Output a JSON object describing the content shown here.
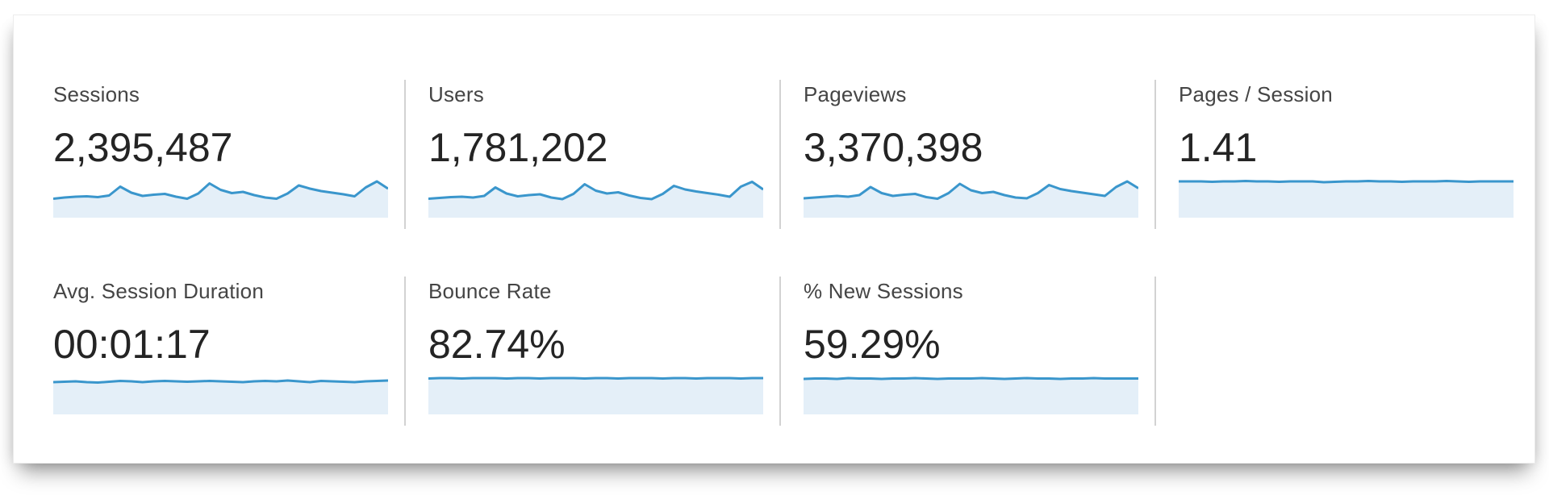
{
  "colors": {
    "spark_line": "#3a96cc",
    "spark_fill": "#e4eff8",
    "divider": "#d2d2d2"
  },
  "metrics": [
    {
      "label": "Sessions",
      "value": "2,395,487"
    },
    {
      "label": "Users",
      "value": "1,781,202"
    },
    {
      "label": "Pageviews",
      "value": "3,370,398"
    },
    {
      "label": "Pages / Session",
      "value": "1.41"
    },
    {
      "label": "Avg. Session Duration",
      "value": "00:01:17"
    },
    {
      "label": "Bounce Rate",
      "value": "82.74%"
    },
    {
      "label": "% New Sessions",
      "value": "59.29%"
    }
  ],
  "chart_data": [
    {
      "type": "area",
      "metric": "Sessions",
      "title": "Sessions sparkline",
      "xlabel": "",
      "ylabel": "",
      "ylim": [
        0,
        1
      ],
      "grid": false,
      "legend": false,
      "values": [
        0.5,
        0.53,
        0.55,
        0.56,
        0.54,
        0.58,
        0.8,
        0.65,
        0.57,
        0.6,
        0.62,
        0.55,
        0.5,
        0.63,
        0.88,
        0.72,
        0.64,
        0.67,
        0.59,
        0.53,
        0.5,
        0.63,
        0.83,
        0.75,
        0.69,
        0.65,
        0.61,
        0.56,
        0.78,
        0.93,
        0.75
      ]
    },
    {
      "type": "area",
      "metric": "Users",
      "title": "Users sparkline",
      "xlabel": "",
      "ylabel": "",
      "ylim": [
        0,
        1
      ],
      "grid": false,
      "legend": false,
      "values": [
        0.5,
        0.52,
        0.54,
        0.55,
        0.53,
        0.57,
        0.78,
        0.63,
        0.56,
        0.59,
        0.61,
        0.53,
        0.49,
        0.62,
        0.86,
        0.7,
        0.63,
        0.66,
        0.58,
        0.52,
        0.49,
        0.62,
        0.82,
        0.73,
        0.68,
        0.64,
        0.6,
        0.55,
        0.8,
        0.92,
        0.73
      ]
    },
    {
      "type": "area",
      "metric": "Pageviews",
      "title": "Pageviews sparkline",
      "xlabel": "",
      "ylabel": "",
      "ylim": [
        0,
        1
      ],
      "grid": false,
      "legend": false,
      "values": [
        0.51,
        0.53,
        0.55,
        0.57,
        0.55,
        0.59,
        0.79,
        0.64,
        0.57,
        0.6,
        0.62,
        0.54,
        0.5,
        0.64,
        0.87,
        0.71,
        0.64,
        0.67,
        0.59,
        0.53,
        0.51,
        0.64,
        0.84,
        0.74,
        0.69,
        0.65,
        0.61,
        0.57,
        0.79,
        0.93,
        0.76
      ]
    },
    {
      "type": "area",
      "metric": "Pages / Session",
      "title": "Pages / Session sparkline",
      "xlabel": "",
      "ylabel": "",
      "ylim": [
        0,
        1
      ],
      "grid": false,
      "legend": false,
      "values": [
        0.93,
        0.93,
        0.93,
        0.92,
        0.93,
        0.93,
        0.94,
        0.93,
        0.93,
        0.92,
        0.93,
        0.93,
        0.93,
        0.91,
        0.92,
        0.93,
        0.93,
        0.94,
        0.93,
        0.93,
        0.92,
        0.93,
        0.93,
        0.93,
        0.94,
        0.93,
        0.92,
        0.93,
        0.93,
        0.93,
        0.93
      ]
    },
    {
      "type": "area",
      "metric": "Avg. Session Duration",
      "title": "Avg. Session Duration sparkline",
      "xlabel": "",
      "ylabel": "",
      "ylim": [
        0,
        1
      ],
      "grid": false,
      "legend": false,
      "values": [
        0.83,
        0.84,
        0.85,
        0.83,
        0.82,
        0.84,
        0.86,
        0.85,
        0.83,
        0.85,
        0.86,
        0.85,
        0.84,
        0.85,
        0.86,
        0.85,
        0.84,
        0.83,
        0.85,
        0.86,
        0.85,
        0.87,
        0.85,
        0.83,
        0.86,
        0.85,
        0.84,
        0.83,
        0.85,
        0.86,
        0.87
      ]
    },
    {
      "type": "area",
      "metric": "Bounce Rate",
      "title": "Bounce Rate sparkline",
      "xlabel": "",
      "ylabel": "",
      "ylim": [
        0,
        1
      ],
      "grid": false,
      "legend": false,
      "values": [
        0.92,
        0.93,
        0.93,
        0.92,
        0.93,
        0.93,
        0.93,
        0.92,
        0.93,
        0.93,
        0.92,
        0.93,
        0.93,
        0.93,
        0.92,
        0.93,
        0.93,
        0.92,
        0.93,
        0.93,
        0.93,
        0.92,
        0.93,
        0.93,
        0.92,
        0.93,
        0.93,
        0.93,
        0.92,
        0.93,
        0.93
      ]
    },
    {
      "type": "area",
      "metric": "% New Sessions",
      "title": "% New Sessions sparkline",
      "xlabel": "",
      "ylabel": "",
      "ylim": [
        0,
        1
      ],
      "grid": false,
      "legend": false,
      "values": [
        0.91,
        0.92,
        0.92,
        0.91,
        0.93,
        0.92,
        0.92,
        0.91,
        0.92,
        0.92,
        0.93,
        0.92,
        0.91,
        0.92,
        0.92,
        0.92,
        0.93,
        0.92,
        0.91,
        0.92,
        0.93,
        0.92,
        0.92,
        0.91,
        0.92,
        0.92,
        0.93,
        0.92,
        0.92,
        0.92,
        0.92
      ]
    }
  ]
}
